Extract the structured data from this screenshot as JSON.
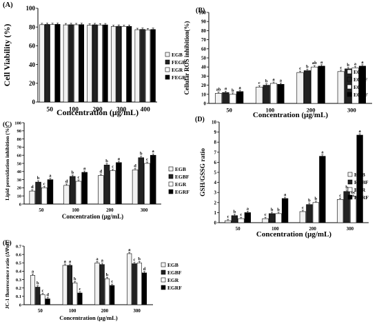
{
  "chart_data": [
    {
      "type": "bar",
      "panel_label": "(A)",
      "ylabel": "Cell Viability (%)",
      "xlabel": "Concentration (μg/mL)",
      "ylim": [
        0,
        100
      ],
      "yticks": [
        0,
        20,
        40,
        60,
        80,
        100
      ],
      "categories": [
        "50",
        "100",
        "200",
        "300",
        "400"
      ],
      "legend_position": "right",
      "series": [
        {
          "name": "EGB",
          "values": [
            82.5,
            82.3,
            82.0,
            80.5,
            77.2
          ],
          "fill": "#f2f2f2"
        },
        {
          "name": "FEGB",
          "values": [
            82.8,
            82.5,
            82.4,
            80.8,
            77.5
          ],
          "fill": "#222222"
        },
        {
          "name": "EGR",
          "values": [
            82.6,
            82.4,
            82.2,
            80.6,
            77.0
          ],
          "fill": "#ffffff"
        },
        {
          "name": "FEGR",
          "values": [
            82.9,
            82.6,
            82.3,
            80.7,
            77.4
          ],
          "fill": "#000000"
        }
      ],
      "letters": []
    },
    {
      "type": "bar",
      "panel_label": "(B)",
      "ylabel": "Cellular ROS inhibition(%)",
      "xlabel": "Concentration (μg/mL)",
      "ylim": [
        0,
        100
      ],
      "yticks": [
        0,
        10,
        20,
        30,
        40,
        50,
        60,
        70,
        80,
        90,
        100
      ],
      "categories": [
        "50",
        "100",
        "200",
        "300"
      ],
      "legend_position": "right",
      "series": [
        {
          "name": "EGB",
          "values": [
            11,
            18,
            34,
            35
          ],
          "fill": "#f2f2f2"
        },
        {
          "name": "EGBF",
          "values": [
            12,
            20,
            36,
            38
          ],
          "fill": "#222222"
        },
        {
          "name": "EGR",
          "values": [
            10,
            22,
            40,
            39
          ],
          "fill": "#ffffff"
        },
        {
          "name": "EGRF",
          "values": [
            13,
            21,
            41,
            41
          ],
          "fill": "#000000"
        }
      ],
      "letters": [
        [
          "ab",
          "a",
          "b",
          "a"
        ],
        [
          "c",
          "b",
          "a",
          "a"
        ],
        [
          "c",
          "b",
          "ab",
          "a"
        ],
        [
          "c",
          "b",
          "a",
          "a"
        ]
      ]
    },
    {
      "type": "bar",
      "panel_label": "(C)",
      "ylabel": "Lipid peroxidation inhibition (%)",
      "xlabel": "Concentration (μg/mL)",
      "ylim": [
        0,
        100
      ],
      "yticks": [
        0,
        10,
        20,
        30,
        40,
        50,
        60,
        70,
        80,
        90,
        100
      ],
      "categories": [
        "50",
        "100",
        "200",
        "300"
      ],
      "legend_position": "right",
      "series": [
        {
          "name": "EGB",
          "values": [
            16,
            23,
            35,
            42
          ],
          "fill": "#f2f2f2"
        },
        {
          "name": "EGBF",
          "values": [
            27,
            34,
            48,
            57
          ],
          "fill": "#222222"
        },
        {
          "name": "EGR",
          "values": [
            20,
            28,
            41,
            50
          ],
          "fill": "#ffffff"
        },
        {
          "name": "EGRF",
          "values": [
            30,
            39,
            51,
            60
          ],
          "fill": "#000000"
        }
      ],
      "letters": [
        [
          "d",
          "b",
          "c",
          "a"
        ],
        [
          "d",
          "b",
          "c",
          "a"
        ],
        [
          "d",
          "b",
          "c",
          "a"
        ],
        [
          "d",
          "b",
          "c",
          "a"
        ]
      ]
    },
    {
      "type": "bar",
      "panel_label": "(D)",
      "ylabel": "GSH/GSSG ratio",
      "xlabel": "Concentration (μg/mL)",
      "ylim": [
        0,
        10
      ],
      "yticks": [
        0,
        1,
        2,
        3,
        4,
        5,
        6,
        7,
        8,
        9,
        10
      ],
      "categories": [
        "50",
        "100",
        "200",
        "300"
      ],
      "legend_position": "right",
      "series": [
        {
          "name": "EGB",
          "values": [
            0.2,
            0.4,
            1.1,
            2.3
          ],
          "fill": "#f2f2f2"
        },
        {
          "name": "EGBF",
          "values": [
            0.7,
            0.9,
            1.8,
            3.1
          ],
          "fill": "#222222"
        },
        {
          "name": "EGR",
          "values": [
            0.4,
            0.9,
            2.0,
            2.6
          ],
          "fill": "#ffffff"
        },
        {
          "name": "EGRF",
          "values": [
            1.0,
            2.4,
            6.6,
            8.7
          ],
          "fill": "#000000"
        }
      ],
      "letters": [
        [
          "c",
          "b",
          "c",
          "a"
        ],
        [
          "c",
          "b",
          "b",
          "a"
        ],
        [
          "c",
          "b",
          "b",
          "a"
        ],
        [
          "c",
          "b",
          "bc",
          "a"
        ]
      ]
    },
    {
      "type": "bar",
      "panel_label": "(E)",
      "ylabel": "JC-1 fluorescence ratio (ΔΨm)",
      "xlabel": "Concentration (μg/mL)",
      "ylim": [
        0,
        0.7
      ],
      "yticks": [
        0,
        0.1,
        0.2,
        0.3,
        0.4,
        0.5,
        0.6,
        0.7
      ],
      "categories": [
        "50",
        "100",
        "200",
        "300"
      ],
      "legend_position": "right",
      "series": [
        {
          "name": "EGB",
          "values": [
            0.35,
            0.47,
            0.5,
            0.61
          ],
          "fill": "#f2f2f2"
        },
        {
          "name": "EGBF",
          "values": [
            0.21,
            0.47,
            0.48,
            0.49
          ],
          "fill": "#222222"
        },
        {
          "name": "EGR",
          "values": [
            0.12,
            0.26,
            0.31,
            0.5
          ],
          "fill": "#ffffff"
        },
        {
          "name": "EGRF",
          "values": [
            0.07,
            0.14,
            0.23,
            0.38
          ],
          "fill": "#000000"
        }
      ],
      "letters": [
        [
          "a",
          "b",
          "c",
          "d"
        ],
        [
          "a",
          "a",
          "b",
          "c"
        ],
        [
          "a",
          "a",
          "b",
          "c"
        ],
        [
          "a",
          "c",
          "b",
          "d"
        ]
      ]
    }
  ]
}
